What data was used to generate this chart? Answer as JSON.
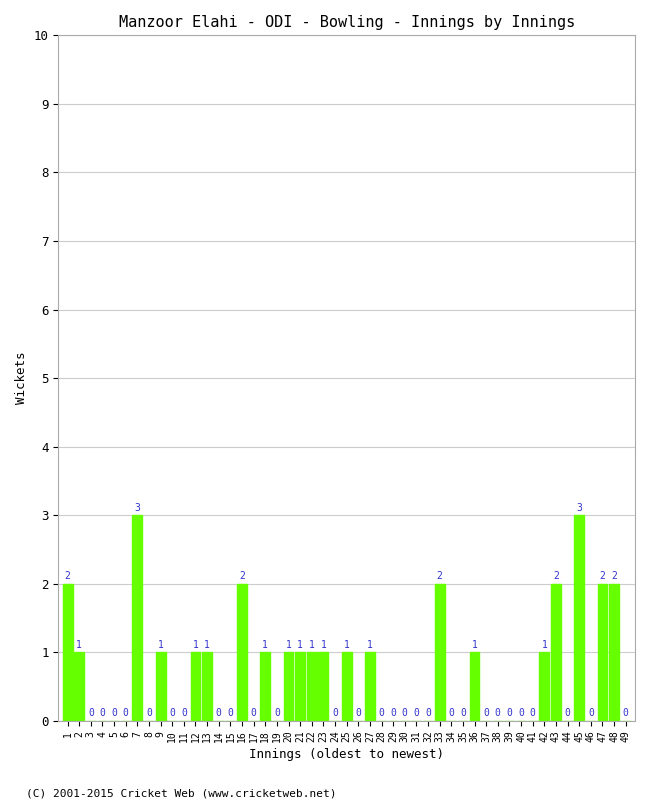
{
  "title": "Manzoor Elahi - ODI - Bowling - Innings by Innings",
  "xlabel": "Innings (oldest to newest)",
  "ylabel": "Wickets",
  "ylim": [
    0,
    10
  ],
  "yticks": [
    0,
    1,
    2,
    3,
    4,
    5,
    6,
    7,
    8,
    9,
    10
  ],
  "bar_color": "#66FF00",
  "label_color": "#3333CC",
  "background_color": "#FFFFFF",
  "grid_color": "#CCCCCC",
  "footer": "(C) 2001-2015 Cricket Web (www.cricketweb.net)",
  "wickets": [
    2,
    1,
    0,
    0,
    0,
    0,
    3,
    0,
    1,
    0,
    0,
    1,
    1,
    0,
    0,
    2,
    0,
    1,
    0,
    1,
    1,
    1,
    1,
    0,
    1,
    0,
    1,
    0,
    0,
    0,
    0,
    0,
    2,
    0,
    0,
    1,
    0,
    0,
    0,
    0,
    0,
    1,
    2,
    0,
    3,
    0,
    2,
    2,
    0
  ],
  "title_fontsize": 11,
  "tick_fontsize": 7,
  "bar_label_fontsize": 7,
  "axis_label_fontsize": 9,
  "footer_fontsize": 8
}
